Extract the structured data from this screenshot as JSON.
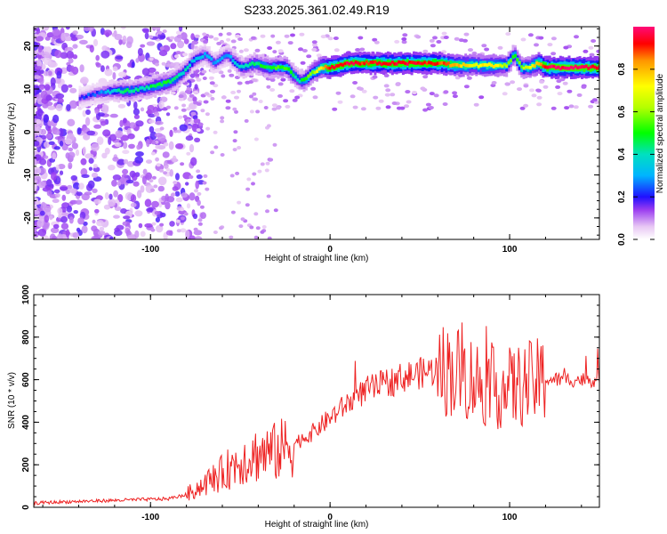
{
  "title": "S233.2025.361.02.49.R19",
  "chart_data": [
    {
      "type": "heatmap",
      "xlabel": "Height of straight line (km)",
      "ylabel": "Frequency (Hz)",
      "xlim": [
        -165,
        150
      ],
      "ylim": [
        -25,
        24.5
      ],
      "xticks": [
        -100,
        0,
        100
      ],
      "yticks": [
        -20,
        -10,
        0,
        10,
        20
      ],
      "ridge": {
        "x": [
          -140,
          -130,
          -122,
          -115,
          -105,
          -95,
          -88,
          -82,
          -76,
          -70,
          -65,
          -58,
          -50,
          -42,
          -35,
          -25,
          -18,
          -15,
          -10,
          -5,
          0,
          10,
          20,
          40,
          60,
          70,
          80,
          90,
          98,
          102,
          106,
          110,
          115,
          120,
          130,
          140,
          150
        ],
        "freq": [
          8,
          9,
          9.5,
          9.5,
          10,
          11,
          12,
          14,
          17,
          18,
          16,
          18,
          15,
          16,
          15,
          15,
          12,
          12,
          14,
          15,
          15,
          16,
          16,
          16,
          16,
          15.5,
          15.5,
          15.5,
          15.5,
          18,
          15,
          15,
          16,
          15,
          15,
          15,
          15
        ],
        "amp": [
          0.2,
          0.25,
          0.35,
          0.45,
          0.4,
          0.5,
          0.45,
          0.4,
          0.35,
          0.3,
          0.3,
          0.3,
          0.4,
          0.45,
          0.5,
          0.55,
          0.4,
          0.5,
          0.6,
          0.75,
          0.95,
          0.95,
          0.9,
          0.95,
          0.9,
          0.8,
          0.7,
          0.75,
          0.6,
          0.5,
          0.6,
          0.65,
          0.8,
          0.95,
          0.98,
          0.97,
          0.95
        ]
      }
    },
    {
      "type": "line",
      "xlabel": "Height of straight line (km)",
      "ylabel": "SNR (10 * v/v)",
      "xlim": [
        -165,
        150
      ],
      "ylim": [
        0,
        1000
      ],
      "xticks": [
        -100,
        0,
        100
      ],
      "yticks": [
        0,
        200,
        400,
        600,
        800,
        1000
      ],
      "series": [
        {
          "name": "SNR",
          "x": [
            -165,
            -150,
            -130,
            -110,
            -90,
            -80,
            -70,
            -60,
            -50,
            -40,
            -30,
            -20,
            -10,
            0,
            10,
            20,
            30,
            40,
            50,
            60,
            70,
            80,
            90,
            100,
            110,
            120,
            130,
            140,
            150
          ],
          "values": [
            20,
            25,
            30,
            35,
            40,
            60,
            110,
            160,
            220,
            250,
            260,
            300,
            350,
            420,
            490,
            550,
            580,
            610,
            630,
            650,
            640,
            600,
            560,
            560,
            580,
            600,
            600,
            600,
            600
          ]
        }
      ]
    }
  ],
  "colorbar": {
    "label": "Normalized spectral amplitude",
    "ticks": [
      0.0,
      0.2,
      0.4,
      0.6,
      0.8
    ],
    "tick_labels": [
      "0.0",
      "0.2",
      "0.4",
      "0.6",
      "0.8"
    ]
  }
}
